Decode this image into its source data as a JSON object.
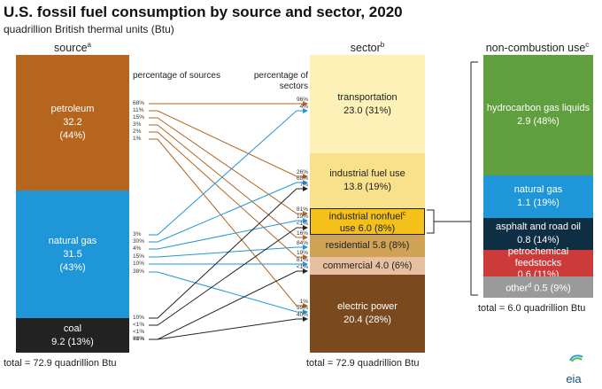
{
  "header": {
    "title": "U.S. fossil fuel consumption by source and sector, 2020",
    "subtitle": "quadrillion British thermal units (Btu)"
  },
  "columns": {
    "source": {
      "label": "source",
      "sup": "a"
    },
    "sector": {
      "label": "sector",
      "sup": "b"
    },
    "noncombustion": {
      "label": "non-combustion use",
      "sup": "c"
    },
    "pct_sources": "percentage of sources",
    "pct_sectors": "percentage of sectors"
  },
  "sources": {
    "petroleum": {
      "name": "petroleum",
      "value": "32.2",
      "share": "(44%)"
    },
    "natural_gas": {
      "name": "natural gas",
      "value": "31.5",
      "share": "(43%)"
    },
    "coal": {
      "name": "coal",
      "value": "9.2 (13%)"
    }
  },
  "sectors": {
    "transportation": {
      "name": "transportation",
      "value": "23.0 (31%)"
    },
    "industrial_fuel": {
      "name": "industrial fuel use",
      "value": "13.8 (19%)"
    },
    "industrial_nonfuel": {
      "name": "industrial nonfuel",
      "sup": "c",
      "value": "use 6.0 (8%)"
    },
    "residential": {
      "label": "residential 5.8 (8%)"
    },
    "commercial": {
      "label": "commercial 4.0 (6%)"
    },
    "electric": {
      "name": "electric power",
      "value": "20.4 (28%)"
    }
  },
  "noncombustion": {
    "hgl": {
      "name": "hydrocarbon gas liquids",
      "value": "2.9 (48%)"
    },
    "natural_gas": {
      "name": "natural gas",
      "value": "1.1 (19%)"
    },
    "asphalt": {
      "name": "asphalt and road oil",
      "value": "0.8 (14%)"
    },
    "petrochem": {
      "label": "petrochemical feedstocks",
      "value": "0.6 (11%)"
    },
    "other": {
      "name": "other",
      "sup": "d",
      "value": " 0.5 (9%)"
    }
  },
  "totals": {
    "source": "total = 72.9 quadrillion Btu",
    "sector": "total = 72.9 quadrillion Btu",
    "noncombustion": "total = 6.0 quadrillion Btu"
  },
  "colors": {
    "petroleum": "#b5651d",
    "natural_gas": "#1f96d8",
    "coal": "#222222",
    "transportation": "#fdf1b7",
    "industrial_fuel": "#f9e08a",
    "industrial_nonfuel": "#f3c11a",
    "residential": "#d0a256",
    "commercial": "#e7c0a1",
    "electric": "#7a4a1e",
    "hgl": "#5f9f3e",
    "nc_gas": "#1f96d8",
    "asphalt": "#0e2e44",
    "petrochem": "#cd3a3a",
    "other": "#9a9a9a"
  },
  "flows": [
    {
      "from": "petroleum",
      "to": "transportation",
      "src_pct": "68%",
      "dst_pct": "96%"
    },
    {
      "from": "petroleum",
      "to": "industrial_fuel",
      "src_pct": "11%",
      "dst_pct": "26%"
    },
    {
      "from": "petroleum",
      "to": "industrial_nonfuel",
      "src_pct": "15%",
      "dst_pct": "81%"
    },
    {
      "from": "petroleum",
      "to": "residential",
      "src_pct": "3%",
      "dst_pct": "16%"
    },
    {
      "from": "petroleum",
      "to": "commercial",
      "src_pct": "2%",
      "dst_pct": "19%"
    },
    {
      "from": "petroleum",
      "to": "electric",
      "src_pct": "1%",
      "dst_pct": "1%"
    },
    {
      "from": "natural_gas",
      "to": "transportation",
      "src_pct": "3%",
      "dst_pct": "4%"
    },
    {
      "from": "natural_gas",
      "to": "industrial_fuel",
      "src_pct": "30%",
      "dst_pct": "68%"
    },
    {
      "from": "natural_gas",
      "to": "industrial_nonfuel",
      "src_pct": "4%",
      "dst_pct": "19%"
    },
    {
      "from": "natural_gas",
      "to": "residential",
      "src_pct": "15%",
      "dst_pct": "84%"
    },
    {
      "from": "natural_gas",
      "to": "commercial",
      "src_pct": "10%",
      "dst_pct": "81%"
    },
    {
      "from": "natural_gas",
      "to": "electric",
      "src_pct": "38%",
      "dst_pct": "59%"
    },
    {
      "from": "coal",
      "to": "industrial_fuel",
      "src_pct": "10%",
      "dst_pct": "7%"
    },
    {
      "from": "coal",
      "to": "industrial_nonfuel",
      "src_pct": "<1%",
      "dst_pct": "<1%"
    },
    {
      "from": "coal",
      "to": "residential",
      "src_pct": "<1%",
      "dst_pct": ""
    },
    {
      "from": "coal",
      "to": "commercial",
      "src_pct": "<1%",
      "dst_pct": "<1%"
    },
    {
      "from": "coal",
      "to": "electric",
      "src_pct": "90%",
      "dst_pct": "40%"
    }
  ],
  "logo": "eia"
}
